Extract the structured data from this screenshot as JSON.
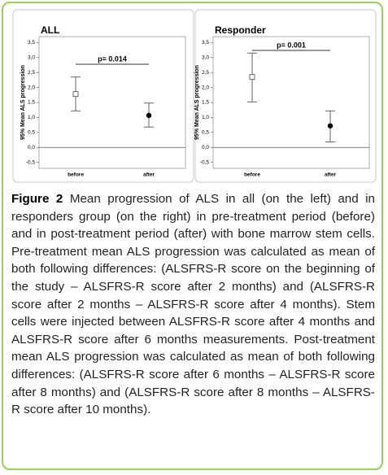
{
  "chart_data": [
    {
      "type": "errorbar",
      "title": "ALL",
      "y_label": "95% Mean ALS progression",
      "categories": [
        "before",
        "after"
      ],
      "values": [
        1.78,
        1.07
      ],
      "lower": [
        1.22,
        0.68
      ],
      "upper": [
        2.35,
        1.48
      ],
      "marker_colors": [
        "#ffffff",
        "#000000"
      ],
      "annotation": "p= 0.014",
      "reference_line": 0,
      "ylim": [
        -0.7,
        3.7
      ],
      "yticks": [
        {
          "value": 3.5,
          "label": "3,5"
        },
        {
          "value": 3.0,
          "label": "3,0"
        },
        {
          "value": 2.5,
          "label": "2,5"
        },
        {
          "value": 2.0,
          "label": "2,0"
        },
        {
          "value": 1.5,
          "label": "1,5"
        },
        {
          "value": 1.0,
          "label": "1,0"
        },
        {
          "value": 0.5,
          "label": "0,5"
        },
        {
          "value": 0,
          "label": "0,0"
        },
        {
          "value": -0.5,
          "label": "-0,5"
        }
      ]
    },
    {
      "type": "errorbar",
      "title": "Responder",
      "y_label": "95% Mean ALS progression",
      "categories": [
        "before",
        "after"
      ],
      "values": [
        2.35,
        0.72
      ],
      "lower": [
        1.52,
        0.18
      ],
      "upper": [
        3.15,
        1.22
      ],
      "marker_colors": [
        "#ffffff",
        "#000000"
      ],
      "annotation": "p= 0.001",
      "reference_line": 0,
      "ylim": [
        -0.7,
        3.7
      ],
      "yticks": [
        {
          "value": 3.5,
          "label": "3,5"
        },
        {
          "value": 3.0,
          "label": "3,0"
        },
        {
          "value": 2.5,
          "label": "2,5"
        },
        {
          "value": 2.0,
          "label": "2,0"
        },
        {
          "value": 1.5,
          "label": "1,5"
        },
        {
          "value": 1.0,
          "label": "1,0"
        },
        {
          "value": 0.5,
          "label": "0,5"
        },
        {
          "value": 0,
          "label": "0,0"
        },
        {
          "value": -0.5,
          "label": "-0,5"
        }
      ]
    }
  ],
  "caption": {
    "label": "Figure 2",
    "text": "Mean progression of ALS in all (on the left) and in responders group (on the right) in pre-treatment period (before) and in post-treatment period (after) with bone marrow stem cells. Pre-treatment mean ALS progression was calculated as mean of both following differences: (ALSFRS-R score on the beginning of the study – ALSFRS-R score after 2 months) and (ALSFRS-R score after 2 months – ALSFRS-R score after 4 months). Stem cells were injected between ALSFRS-R score after 4 months and ALSFRS-R score after 6 months measurements. Post-treatment mean ALS progression was calculated as mean of both following differences: (ALSFRS-R score after 6 months – ALSFRS-R score after 8 months) and (ALSFRS-R score after 8 months – ALSFRS-R score after 10 months)."
  }
}
